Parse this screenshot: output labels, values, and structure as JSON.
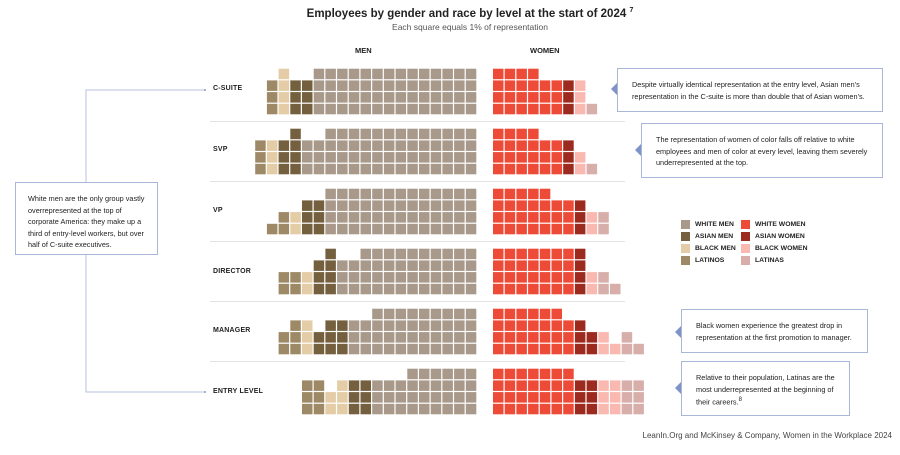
{
  "chart_data": {
    "type": "waffle",
    "title": "Employees by gender and race by level at the start of 2024",
    "title_footnote": "7",
    "subtitle": "Each square equals 1% of representation",
    "column_headers": {
      "men": "MEN",
      "women": "WOMEN"
    },
    "colors": {
      "white_men": "#a8998a",
      "asian_men": "#74603f",
      "black_men": "#e3cca6",
      "latinos": "#9e8966",
      "white_women": "#ee4a38",
      "asian_women": "#9c2a1f",
      "black_women": "#f9b9b1",
      "latinas": "#d8aeab"
    },
    "legend": [
      {
        "key": "white_men",
        "label": "WHITE MEN"
      },
      {
        "key": "asian_men",
        "label": "ASIAN MEN"
      },
      {
        "key": "black_men",
        "label": "BLACK MEN"
      },
      {
        "key": "latinos",
        "label": "LATINOS"
      },
      {
        "key": "white_women",
        "label": "WHITE WOMEN"
      },
      {
        "key": "asian_women",
        "label": "ASIAN WOMEN"
      },
      {
        "key": "black_women",
        "label": "BLACK WOMEN"
      },
      {
        "key": "latinas",
        "label": "LATINAS"
      }
    ],
    "levels": [
      {
        "label": "C-SUITE",
        "men": {
          "white_men": {
            "value": 56,
            "columns": [
              4,
              4,
              4,
              4,
              4,
              4,
              4,
              4,
              4,
              4,
              4,
              4,
              4,
              4
            ]
          },
          "asian_men": {
            "value": 6,
            "columns": [
              3,
              3
            ]
          },
          "black_men": {
            "value": 4,
            "columns": [
              4
            ]
          },
          "latinos": {
            "value": 3,
            "columns": [
              3
            ]
          }
        },
        "women": {
          "white_women": {
            "value": 22,
            "columns": [
              4,
              4,
              4,
              4,
              3,
              3
            ]
          },
          "asian_women": {
            "value": 3,
            "columns": [
              3
            ]
          },
          "black_women": {
            "value": 3,
            "columns": [
              3
            ]
          },
          "latinas": {
            "value": 1,
            "columns": [
              1
            ]
          }
        }
      },
      {
        "label": "SVP",
        "men": {
          "white_men": {
            "value": 58,
            "columns": [
              4,
              4,
              4,
              4,
              4,
              4,
              4,
              4,
              4,
              4,
              4,
              4,
              4,
              3,
              3
            ]
          },
          "asian_men": {
            "value": 7,
            "columns": [
              4,
              3
            ]
          },
          "black_men": {
            "value": 3,
            "columns": [
              3
            ]
          },
          "latinos": {
            "value": 3,
            "columns": [
              3
            ]
          }
        },
        "women": {
          "white_women": {
            "value": 22,
            "columns": [
              4,
              4,
              4,
              4,
              3,
              3
            ]
          },
          "asian_women": {
            "value": 3,
            "columns": [
              3
            ]
          },
          "black_women": {
            "value": 2,
            "columns": [
              2
            ]
          },
          "latinas": {
            "value": 1,
            "columns": [
              1
            ]
          }
        }
      },
      {
        "label": "VP",
        "men": {
          "white_men": {
            "value": 52,
            "columns": [
              4,
              4,
              4,
              4,
              4,
              4,
              4,
              4,
              4,
              4,
              4,
              4,
              4
            ]
          },
          "asian_men": {
            "value": 6,
            "columns": [
              3,
              3
            ]
          },
          "black_men": {
            "value": 2,
            "columns": [
              2
            ]
          },
          "latinos": {
            "value": 3,
            "columns": [
              2,
              1
            ]
          }
        },
        "women": {
          "white_women": {
            "value": 26,
            "columns": [
              4,
              4,
              4,
              4,
              4,
              3,
              3
            ]
          },
          "asian_women": {
            "value": 3,
            "columns": [
              3
            ]
          },
          "black_women": {
            "value": 2,
            "columns": [
              2
            ]
          },
          "latinas": {
            "value": 2,
            "columns": [
              2
            ]
          }
        }
      },
      {
        "label": "DIRECTOR",
        "men": {
          "white_men": {
            "value": 46,
            "columns": [
              4,
              4,
              4,
              4,
              4,
              4,
              4,
              4,
              4,
              4,
              3,
              3
            ]
          },
          "asian_men": {
            "value": 7,
            "columns": [
              4,
              3
            ]
          },
          "black_men": {
            "value": 2,
            "columns": [
              2
            ]
          },
          "latinos": {
            "value": 4,
            "columns": [
              2,
              2
            ]
          }
        },
        "women": {
          "white_women": {
            "value": 28,
            "columns": [
              4,
              4,
              4,
              4,
              4,
              4,
              4
            ]
          },
          "asian_women": {
            "value": 4,
            "columns": [
              4
            ]
          },
          "black_women": {
            "value": 2,
            "columns": [
              2
            ]
          },
          "latinas": {
            "value": 3,
            "columns": [
              2,
              1
            ]
          }
        }
      },
      {
        "label": "MANAGER",
        "men": {
          "white_men": {
            "value": 42,
            "columns": [
              4,
              4,
              4,
              4,
              4,
              4,
              4,
              4,
              4,
              3,
              3
            ]
          },
          "asian_men": {
            "value": 8,
            "columns": [
              3,
              3,
              2
            ]
          },
          "black_men": {
            "value": 3,
            "columns": [
              3
            ]
          },
          "latinos": {
            "value": 5,
            "columns": [
              3,
              2
            ]
          }
        },
        "women": {
          "white_women": {
            "value": 27,
            "columns": [
              4,
              4,
              4,
              4,
              4,
              4,
              3
            ]
          },
          "asian_women": {
            "value": 5,
            "columns": [
              3,
              2
            ]
          },
          "black_women": {
            "value": 3,
            "columns": [
              2,
              1
            ]
          },
          "latinas": {
            "value": 3,
            "columns": [
              2,
              1
            ]
          }
        }
      },
      {
        "label": "ENTRY LEVEL",
        "men": {
          "white_men": {
            "value": 33,
            "columns": [
              4,
              4,
              4,
              4,
              4,
              4,
              3,
              3,
              3
            ]
          },
          "asian_men": {
            "value": 6,
            "columns": [
              3,
              3
            ]
          },
          "black_men": {
            "value": 5,
            "columns": [
              3,
              2
            ]
          },
          "latinos": {
            "value": 6,
            "columns": [
              3,
              3
            ]
          }
        },
        "women": {
          "white_women": {
            "value": 28,
            "columns": [
              4,
              4,
              4,
              4,
              4,
              4,
              4
            ]
          },
          "asian_women": {
            "value": 6,
            "columns": [
              3,
              3
            ]
          },
          "black_women": {
            "value": 6,
            "columns": [
              3,
              3
            ]
          },
          "latinas": {
            "value": 6,
            "columns": [
              3,
              3
            ]
          }
        }
      }
    ],
    "annotations": {
      "left": "White men are the only group vastly overrepresented at the top of corporate America: they make up a third of entry-level workers, but over half of C-suite executives.",
      "csuite": "Despite virtually identical representation at the entry level, Asian men’s representation in the C-suite is more than double that of Asian women’s.",
      "svp": "The representation of women of color falls off relative to white employees and men of color at every level, leaving them severely underrepresented at the top.",
      "manager": "Black women experience the greatest drop in representation at the first promotion to manager.",
      "entry": "Relative to their population, Latinas are the most underrepresented at the beginning of their careers.",
      "entry_footnote": "8"
    },
    "source": "LeanIn.Org and McKinsey & Company, Women in the Workplace 2024"
  }
}
